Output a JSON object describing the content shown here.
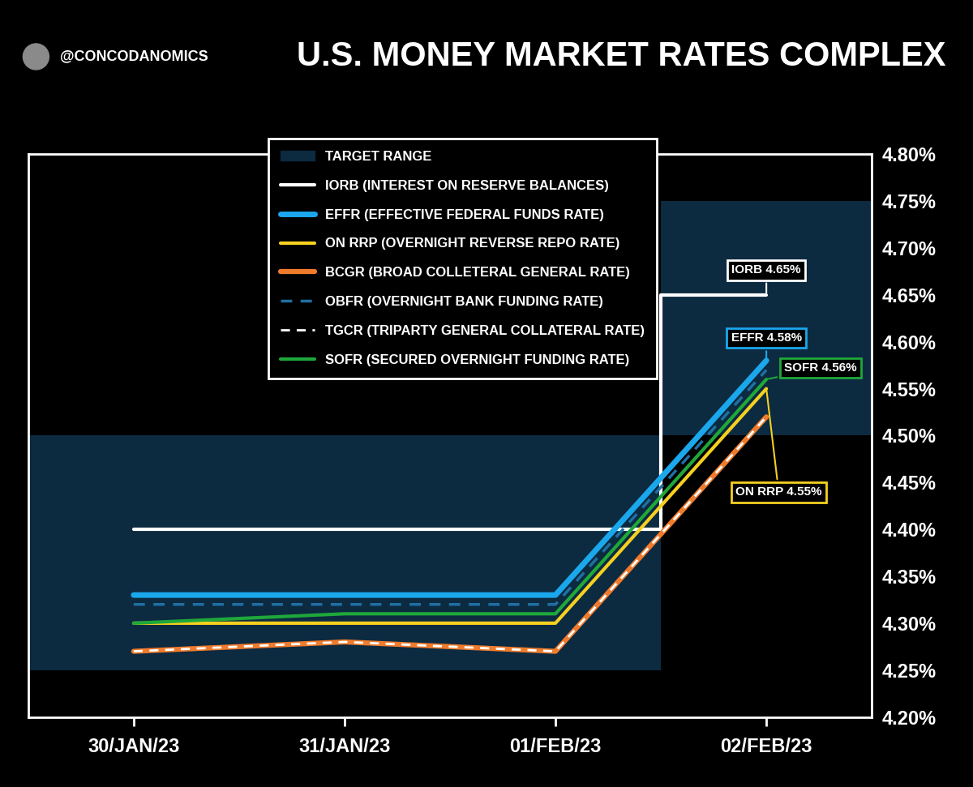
{
  "chart_data": {
    "type": "line",
    "title": "U.S. MONEY MARKET RATES COMPLEX",
    "subtitle": "@CONCODANOMICS",
    "categories": [
      "30/JAN/23",
      "31/JAN/23",
      "01/FEB/23",
      "02/FEB/23"
    ],
    "series": [
      {
        "name": "TARGET RANGE",
        "type": "band",
        "color": "#0c2a40",
        "lower": [
          4.25,
          4.25,
          4.25,
          4.5
        ],
        "upper": [
          4.5,
          4.5,
          4.5,
          4.75
        ]
      },
      {
        "name": "IORB (INTEREST ON RESERVE BALANCES)",
        "color": "#ffffff",
        "line_style": "step",
        "values": [
          4.4,
          4.4,
          4.4,
          4.65
        ]
      },
      {
        "name": "EFFR (EFFECTIVE FEDERAL FUNDS RATE)",
        "color": "#1aa7ec",
        "line_style": "solid",
        "values": [
          4.33,
          4.33,
          4.33,
          4.58
        ]
      },
      {
        "name": "ON RRP (OVERNIGHT REVERSE REPO RATE)",
        "color": "#f5d020",
        "line_style": "solid",
        "values": [
          4.3,
          4.3,
          4.3,
          4.55
        ]
      },
      {
        "name": "BCGR (BROAD COLLETERAL GENERAL RATE)",
        "color": "#f07b2c",
        "line_style": "solid",
        "values": [
          4.27,
          4.28,
          4.27,
          4.52
        ]
      },
      {
        "name": "OBFR (OVERNIGHT BANK FUNDING RATE)",
        "color": "#1f6fa3",
        "line_style": "dashed",
        "values": [
          4.32,
          4.32,
          4.32,
          4.57
        ]
      },
      {
        "name": "TGCR (TRIPARTY GENERAL COLLATERAL RATE)",
        "color": "#ffffff",
        "line_style": "dashed",
        "values": [
          4.27,
          4.28,
          4.27,
          4.52
        ]
      },
      {
        "name": "SOFR (SECURED OVERNIGHT FUNDING RATE)",
        "color": "#1fa83a",
        "line_style": "solid",
        "values": [
          4.3,
          4.31,
          4.31,
          4.56
        ]
      }
    ],
    "annotations": [
      {
        "text": "IORB 4.65%",
        "series": "IORB (INTEREST ON RESERVE BALANCES)"
      },
      {
        "text": "EFFR 4.58%",
        "series": "EFFR (EFFECTIVE FEDERAL FUNDS RATE)"
      },
      {
        "text": "SOFR 4.56%",
        "series": "SOFR (SECURED OVERNIGHT FUNDING RATE)"
      },
      {
        "text": "ON RRP 4.55%",
        "series": "ON RRP (OVERNIGHT REVERSE REPO RATE)"
      }
    ],
    "ylim": [
      4.2,
      4.8
    ],
    "yticks": [
      {
        "value": 4.2,
        "label": "4.20%"
      },
      {
        "value": 4.25,
        "label": "4.25%"
      },
      {
        "value": 4.3,
        "label": "4.30%"
      },
      {
        "value": 4.35,
        "label": "4.35%"
      },
      {
        "value": 4.4,
        "label": "4.40%"
      },
      {
        "value": 4.45,
        "label": "4.45%"
      },
      {
        "value": 4.5,
        "label": "4.50%"
      },
      {
        "value": 4.55,
        "label": "4.55%"
      },
      {
        "value": 4.6,
        "label": "4.60%"
      },
      {
        "value": 4.65,
        "label": "4.65%"
      },
      {
        "value": 4.7,
        "label": "4.70%"
      },
      {
        "value": 4.75,
        "label": "4.75%"
      },
      {
        "value": 4.8,
        "label": "4.80%"
      }
    ],
    "grid": false,
    "legend": "upper center"
  }
}
